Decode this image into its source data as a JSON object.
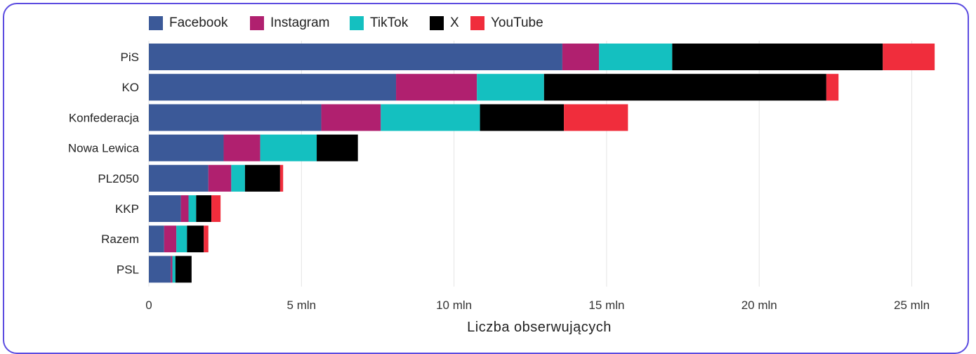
{
  "chart_data": {
    "type": "bar",
    "orientation": "horizontal",
    "stacked": true,
    "categories": [
      "PiS",
      "KO",
      "Konfederacja",
      "Nowa Lewica",
      "PL2050",
      "KKP",
      "Razem",
      "PSL"
    ],
    "series": [
      {
        "name": "Facebook",
        "color": "#3b5998",
        "values": [
          13.55,
          8.1,
          5.65,
          2.45,
          1.95,
          1.05,
          0.5,
          0.72
        ]
      },
      {
        "name": "Instagram",
        "color": "#b0206f",
        "values": [
          1.2,
          2.65,
          1.95,
          1.2,
          0.75,
          0.25,
          0.4,
          0.05
        ]
      },
      {
        "name": "TikTok",
        "color": "#14c0c0",
        "values": [
          2.4,
          2.2,
          3.25,
          1.85,
          0.45,
          0.25,
          0.35,
          0.1
        ]
      },
      {
        "name": "X",
        "color": "#000000",
        "values": [
          6.9,
          9.25,
          2.75,
          1.35,
          1.15,
          0.5,
          0.55,
          0.53
        ]
      },
      {
        "name": "YouTube",
        "color": "#f02d3c",
        "values": [
          1.7,
          0.4,
          2.1,
          0.0,
          0.1,
          0.3,
          0.15,
          0.0
        ]
      }
    ],
    "xlabel": "Liczba obserwujących",
    "ylabel": "",
    "xlim": [
      0,
      26
    ],
    "xticks": [
      0,
      5,
      10,
      15,
      20,
      25
    ],
    "xtick_labels": [
      "0",
      "5 mln",
      "10 mln",
      "15 mln",
      "20 mln",
      "25 mln"
    ],
    "grid": "vertical",
    "legend_position": "top"
  }
}
